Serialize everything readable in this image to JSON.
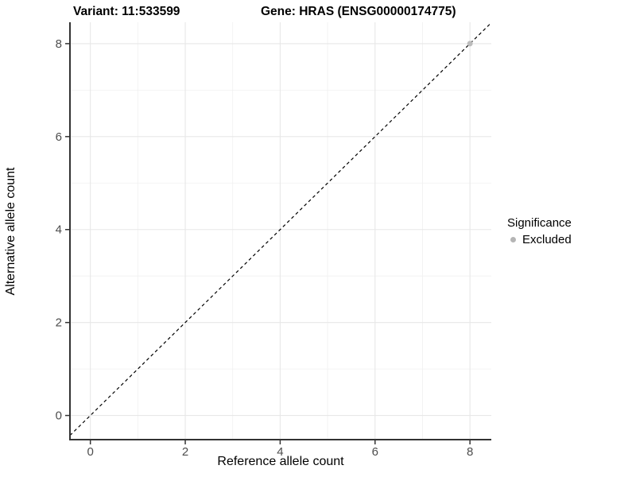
{
  "header": {
    "variant_title": "Variant: 11:533599",
    "gene_title": "Gene: HRAS (ENSG00000174775)"
  },
  "chart_data": {
    "type": "scatter",
    "xlabel": "Reference allele count",
    "ylabel": "Alternative allele count",
    "xlim": [
      -0.43,
      8.45
    ],
    "ylim": [
      -0.52,
      8.46
    ],
    "xticks": [
      0,
      2,
      4,
      6,
      8
    ],
    "yticks": [
      0,
      2,
      4,
      6,
      8
    ],
    "x_minor_ticks": [
      1,
      3,
      5,
      7
    ],
    "y_minor_ticks": [
      1,
      3,
      5,
      7
    ],
    "grid": {
      "major_color": "#e7e7e7",
      "minor_color": "#f0f0f0",
      "background": "#ffffff"
    },
    "axis_color": "#333333",
    "tick_label_color": "#4d4d4d",
    "identity_line": {
      "slope": 1,
      "intercept": 0,
      "style": "dashed",
      "color": "#000000"
    },
    "points": [
      {
        "x": 8,
        "y": 8,
        "significance": "Excluded",
        "color": "#bcbcbc"
      }
    ],
    "legend": {
      "title": "Significance",
      "position": "right",
      "items": [
        {
          "label": "Excluded",
          "color": "#b5b5b5"
        }
      ]
    }
  }
}
